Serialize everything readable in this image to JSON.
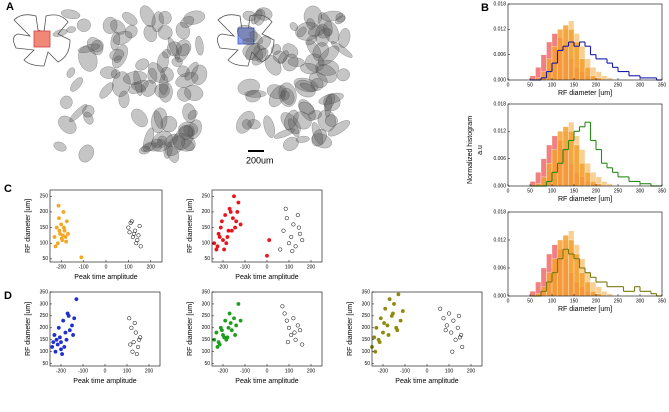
{
  "panels": {
    "labels": [
      "A",
      "B",
      "C",
      "D"
    ],
    "scale_bar": "200um",
    "histogram_ylabel": [
      "Normalized histogram",
      "a.u"
    ]
  },
  "chart_data": [
    {
      "type": "histogram",
      "xlabel": "RF diameter [um]",
      "xlim": [
        0,
        350
      ],
      "xticks": [
        0,
        50,
        100,
        150,
        200,
        250,
        300,
        350
      ],
      "ylim": [
        0,
        0.018
      ],
      "yticks": [
        {
          "value": 0,
          "label": "0.000"
        },
        0.006,
        0.012,
        0.018
      ],
      "bins": [
        50,
        62.5,
        75,
        87.5,
        100,
        112.5,
        125,
        137.5,
        150,
        162.5,
        175,
        187.5,
        200,
        212.5,
        225,
        237.5,
        250,
        262.5,
        275,
        287.5,
        300,
        312.5,
        325,
        337.5,
        350
      ],
      "series": [
        {
          "style": "bar",
          "color": "#f8c880",
          "values": [
            0,
            0,
            0.001,
            0.003,
            0.006,
            0.01,
            0.012,
            0.014,
            0.011,
            0.008,
            0.005,
            0.003,
            0.002,
            0.001,
            0.0005,
            0,
            0,
            0,
            0,
            0,
            0,
            0,
            0,
            0
          ]
        },
        {
          "style": "bar",
          "color": "#ef6a6a",
          "values": [
            0.001,
            0.003,
            0.006,
            0.009,
            0.011,
            0.01,
            0.008,
            0.005,
            0.003,
            0.002,
            0.001,
            0.0005,
            0,
            0,
            0,
            0,
            0,
            0,
            0,
            0,
            0,
            0,
            0,
            0
          ]
        },
        {
          "style": "bar",
          "color": "#f5a030",
          "values": [
            0,
            0.0005,
            0.002,
            0.005,
            0.008,
            0.012,
            0.013,
            0.012,
            0.009,
            0.005,
            0.003,
            0.001,
            0.0005,
            0,
            0,
            0,
            0,
            0,
            0,
            0,
            0,
            0,
            0,
            0
          ]
        },
        {
          "style": "step",
          "color": "#1a1aaa",
          "values": [
            0,
            0,
            0.0005,
            0.002,
            0.004,
            0.007,
            0.008,
            0.009,
            0.008,
            0.009,
            0.008,
            0.006,
            0.005,
            0.005,
            0.004,
            0.003,
            0.002,
            0.002,
            0.001,
            0.001,
            0.0005,
            0.0005,
            0.0005,
            0
          ]
        }
      ]
    },
    {
      "type": "histogram",
      "xlabel": "RF diameter [um]",
      "xlim": [
        0,
        350
      ],
      "xticks": [
        0,
        50,
        100,
        150,
        200,
        250,
        300,
        350
      ],
      "ylim": [
        0,
        0.018
      ],
      "yticks": [
        {
          "value": 0,
          "label": "0.000"
        },
        0.006,
        0.012,
        0.018
      ],
      "bins": [
        50,
        62.5,
        75,
        87.5,
        100,
        112.5,
        125,
        137.5,
        150,
        162.5,
        175,
        187.5,
        200,
        212.5,
        225,
        237.5,
        250,
        262.5,
        275,
        287.5,
        300,
        312.5,
        325,
        337.5,
        350
      ],
      "series": [
        {
          "style": "bar",
          "color": "#f8c880",
          "values": [
            0,
            0,
            0.001,
            0.003,
            0.006,
            0.01,
            0.012,
            0.014,
            0.011,
            0.008,
            0.005,
            0.003,
            0.002,
            0.001,
            0.0005,
            0,
            0,
            0,
            0,
            0,
            0,
            0,
            0,
            0
          ]
        },
        {
          "style": "bar",
          "color": "#ef6a6a",
          "values": [
            0.001,
            0.003,
            0.006,
            0.009,
            0.011,
            0.01,
            0.008,
            0.005,
            0.003,
            0.002,
            0.001,
            0.0005,
            0,
            0,
            0,
            0,
            0,
            0,
            0,
            0,
            0,
            0,
            0,
            0
          ]
        },
        {
          "style": "bar",
          "color": "#f5a030",
          "values": [
            0,
            0.0005,
            0.002,
            0.005,
            0.008,
            0.012,
            0.013,
            0.012,
            0.009,
            0.005,
            0.003,
            0.001,
            0.0005,
            0,
            0,
            0,
            0,
            0,
            0,
            0,
            0,
            0,
            0,
            0
          ]
        },
        {
          "style": "step",
          "color": "#2a8a1a",
          "values": [
            0,
            0,
            0,
            0.001,
            0.003,
            0.005,
            0.008,
            0.01,
            0.012,
            0.013,
            0.014,
            0.01,
            0.008,
            0.005,
            0.004,
            0.003,
            0.002,
            0.002,
            0.001,
            0.001,
            0.0005,
            0.0005,
            0,
            0
          ]
        }
      ]
    },
    {
      "type": "histogram",
      "xlabel": "RF diameter [um]",
      "xlim": [
        0,
        350
      ],
      "xticks": [
        0,
        50,
        100,
        150,
        200,
        250,
        300,
        350
      ],
      "ylim": [
        0,
        0.018
      ],
      "yticks": [
        {
          "value": 0,
          "label": "0.000"
        },
        0.006,
        0.012,
        0.018
      ],
      "bins": [
        50,
        62.5,
        75,
        87.5,
        100,
        112.5,
        125,
        137.5,
        150,
        162.5,
        175,
        187.5,
        200,
        212.5,
        225,
        237.5,
        250,
        262.5,
        275,
        287.5,
        300,
        312.5,
        325,
        337.5,
        350
      ],
      "series": [
        {
          "style": "bar",
          "color": "#f8c880",
          "values": [
            0,
            0,
            0.001,
            0.003,
            0.006,
            0.01,
            0.012,
            0.014,
            0.011,
            0.008,
            0.005,
            0.003,
            0.002,
            0.001,
            0.0005,
            0,
            0,
            0,
            0,
            0,
            0,
            0,
            0,
            0
          ]
        },
        {
          "style": "bar",
          "color": "#ef6a6a",
          "values": [
            0.001,
            0.003,
            0.006,
            0.009,
            0.011,
            0.01,
            0.008,
            0.005,
            0.003,
            0.002,
            0.001,
            0.0005,
            0,
            0,
            0,
            0,
            0,
            0,
            0,
            0,
            0,
            0,
            0,
            0
          ]
        },
        {
          "style": "bar",
          "color": "#f5a030",
          "values": [
            0,
            0.0005,
            0.002,
            0.005,
            0.008,
            0.012,
            0.013,
            0.012,
            0.009,
            0.005,
            0.003,
            0.001,
            0.0005,
            0,
            0,
            0,
            0,
            0,
            0,
            0,
            0,
            0,
            0,
            0
          ]
        },
        {
          "style": "step",
          "color": "#7a7a10",
          "values": [
            0,
            0,
            0.001,
            0.003,
            0.005,
            0.008,
            0.01,
            0.009,
            0.008,
            0.006,
            0.005,
            0.004,
            0.003,
            0.003,
            0.002,
            0.002,
            0.002,
            0.001,
            0.001,
            0.002,
            0.001,
            0.001,
            0.0005,
            0
          ]
        }
      ]
    },
    {
      "type": "scatter",
      "xlabel": "Peak time amplitude",
      "ylabel": "RF diameter [um]",
      "xlim": [
        -250,
        250
      ],
      "xticks": [
        -200,
        -100,
        0,
        100,
        200
      ],
      "ylim": [
        40,
        270
      ],
      "yticks": [
        50,
        100,
        150,
        200,
        250
      ],
      "series": [
        {
          "color": "#f5a623",
          "filled": true,
          "x": [
            -230,
            -220,
            -215,
            -210,
            -205,
            -200,
            -195,
            -190,
            -185,
            -180,
            -175,
            -170,
            -225,
            -212,
            -198,
            -188,
            -178,
            -208,
            -192,
            -110
          ],
          "values": [
            120,
            150,
            100,
            180,
            130,
            160,
            110,
            200,
            140,
            120,
            170,
            130,
            90,
            220,
            115,
            150,
            105,
            140,
            125,
            55
          ]
        },
        {
          "color": "#000000",
          "filled": false,
          "x": [
            100,
            110,
            120,
            130,
            140,
            150,
            115,
            125,
            135,
            145,
            155,
            105
          ],
          "values": [
            150,
            165,
            120,
            140,
            110,
            155,
            170,
            130,
            100,
            125,
            90,
            135
          ]
        }
      ]
    },
    {
      "type": "scatter",
      "xlabel": "Peak time amplitude",
      "ylabel": "RF diameter [um]",
      "xlim": [
        -250,
        250
      ],
      "xticks": [
        -200,
        -100,
        0,
        100,
        200
      ],
      "ylim": [
        40,
        270
      ],
      "yticks": [
        50,
        100,
        150,
        200,
        250
      ],
      "series": [
        {
          "color": "#e8141c",
          "filled": true,
          "x": [
            -240,
            -230,
            -220,
            -210,
            -200,
            -190,
            -180,
            -170,
            -160,
            -150,
            -140,
            -130,
            -120,
            -225,
            -205,
            -185,
            -165,
            -145,
            -215,
            -195,
            -175,
            -155,
            -135,
            0,
            10
          ],
          "values": [
            100,
            80,
            130,
            150,
            110,
            190,
            120,
            210,
            140,
            250,
            170,
            230,
            160,
            90,
            170,
            100,
            200,
            150,
            120,
            80,
            140,
            180,
            200,
            60,
            110
          ]
        },
        {
          "color": "#000000",
          "filled": false,
          "x": [
            60,
            75,
            90,
            100,
            110,
            120,
            130,
            140,
            150,
            160,
            85,
            115,
            145
          ],
          "values": [
            80,
            140,
            180,
            100,
            120,
            160,
            90,
            190,
            130,
            110,
            210,
            75,
            150
          ]
        }
      ]
    },
    {
      "type": "scatter",
      "xlabel": "Peak time amplitude",
      "ylabel": "RF diameter [um]",
      "xlim": [
        -250,
        250
      ],
      "xticks": [
        -200,
        -100,
        0,
        100,
        200
      ],
      "ylim": [
        40,
        350
      ],
      "yticks": [
        50,
        100,
        150,
        200,
        250,
        300,
        350
      ],
      "series": [
        {
          "color": "#1f2fd0",
          "filled": true,
          "x": [
            -240,
            -230,
            -220,
            -210,
            -200,
            -190,
            -180,
            -170,
            -160,
            -150,
            -140,
            -130,
            -225,
            -205,
            -185,
            -165,
            -145,
            -215,
            -195,
            -175,
            -235,
            -200
          ],
          "values": [
            120,
            170,
            150,
            200,
            140,
            230,
            180,
            260,
            190,
            210,
            240,
            320,
            100,
            160,
            120,
            250,
            170,
            130,
            90,
            150,
            140,
            110
          ]
        },
        {
          "color": "#000000",
          "filled": false,
          "x": [
            110,
            120,
            130,
            140,
            150,
            160,
            115,
            135,
            145,
            155,
            125
          ],
          "values": [
            240,
            200,
            140,
            180,
            120,
            160,
            130,
            220,
            90,
            150,
            100
          ]
        }
      ]
    },
    {
      "type": "scatter",
      "xlabel": "Peak time amplitude",
      "ylabel": "RF diameter [um]",
      "xlim": [
        -250,
        250
      ],
      "xticks": [
        -200,
        -100,
        0,
        100,
        200
      ],
      "ylim": [
        40,
        350
      ],
      "yticks": [
        50,
        100,
        150,
        200,
        250,
        300,
        350
      ],
      "series": [
        {
          "color": "#1e9e1e",
          "filled": true,
          "x": [
            -240,
            -230,
            -220,
            -210,
            -200,
            -190,
            -180,
            -170,
            -160,
            -150,
            -140,
            -130,
            -120,
            -225,
            -205,
            -185,
            -165,
            -145,
            -215,
            -195,
            -175
          ],
          "values": [
            150,
            180,
            140,
            200,
            170,
            230,
            160,
            260,
            190,
            240,
            210,
            300,
            230,
            120,
            190,
            150,
            220,
            170,
            130,
            160,
            200
          ]
        },
        {
          "color": "#000000",
          "filled": false,
          "x": [
            70,
            80,
            90,
            100,
            110,
            120,
            130,
            140,
            150,
            160,
            95,
            125
          ],
          "values": [
            290,
            260,
            230,
            200,
            170,
            240,
            150,
            210,
            190,
            130,
            140,
            180
          ]
        }
      ]
    },
    {
      "type": "scatter",
      "xlabel": "Peak time amplitude",
      "ylabel": "RF diameter [um]",
      "xlim": [
        -250,
        250
      ],
      "xticks": [
        -200,
        -100,
        0,
        100,
        200
      ],
      "ylim": [
        40,
        350
      ],
      "yticks": [
        50,
        100,
        150,
        200,
        250,
        300,
        350
      ],
      "series": [
        {
          "color": "#8f8a0e",
          "filled": true,
          "x": [
            -250,
            -240,
            -230,
            -220,
            -210,
            -200,
            -190,
            -180,
            -170,
            -160,
            -150,
            -140,
            -130,
            -120,
            -110,
            -235,
            -215,
            -195,
            -175,
            -155,
            -135
          ],
          "values": [
            120,
            160,
            200,
            150,
            240,
            180,
            280,
            210,
            320,
            250,
            300,
            200,
            340,
            230,
            270,
            100,
            140,
            220,
            170,
            260,
            190
          ]
        },
        {
          "color": "#000000",
          "filled": false,
          "x": [
            60,
            75,
            90,
            100,
            110,
            120,
            130,
            140,
            150,
            160,
            85,
            115,
            145,
            155
          ],
          "values": [
            280,
            240,
            210,
            260,
            180,
            230,
            150,
            200,
            160,
            120,
            190,
            100,
            250,
            170
          ]
        }
      ]
    }
  ]
}
